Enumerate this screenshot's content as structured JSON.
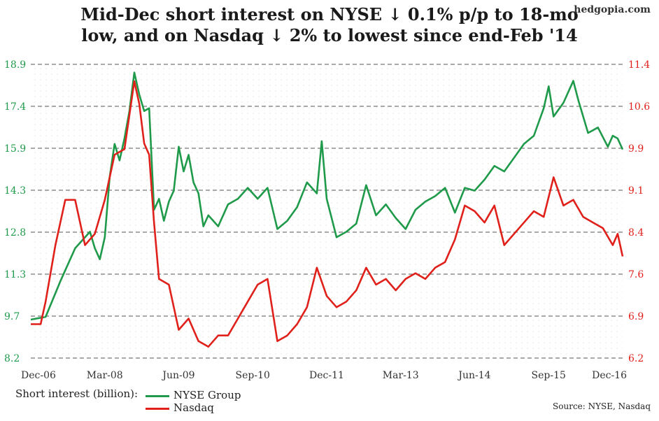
{
  "header": {
    "title_line1": "Mid-Dec short interest on NYSE ↓ 0.1% p/p to 18-mo",
    "title_line2": "low, and on Nasdaq ↓ 2% to lowest since end-Feb '14",
    "brand": "hedgopia.com"
  },
  "legend": {
    "label": "Short interest (billion):",
    "nyse": "NYSE Group",
    "nasdaq": "Nasdaq"
  },
  "source": "Source: NYSE, Nasdaq",
  "colors": {
    "nyse": "#1f9a4a",
    "nasdaq": "#e0201a",
    "grid": "#555555"
  },
  "chart_data": {
    "type": "line",
    "x_ticks": [
      "Dec-06",
      "Mar-08",
      "Jun-09",
      "Sep-10",
      "Dec-11",
      "Mar-13",
      "Jun-14",
      "Sep-15",
      "Dec-16"
    ],
    "x_range": [
      "Dec-06",
      "Dec-16"
    ],
    "left_axis": {
      "series": "NYSE Group",
      "range": [
        8.2,
        18.9
      ],
      "ticks": [
        "8.2",
        "9.7",
        "11.3",
        "12.8",
        "14.3",
        "15.9",
        "17.4",
        "18.9"
      ]
    },
    "right_axis": {
      "series": "Nasdaq",
      "range": [
        6.2,
        11.4
      ],
      "ticks": [
        "6.2",
        "6.9",
        "7.6",
        "8.4",
        "9.1",
        "9.9",
        "10.6",
        "11.4"
      ]
    },
    "grid": "horizontal dashed",
    "legend_position": "bottom-left",
    "series": [
      {
        "name": "NYSE Group",
        "axis": "left",
        "points": [
          [
            "2006-12",
            9.6
          ],
          [
            "2007-03",
            9.7
          ],
          [
            "2007-06",
            11.0
          ],
          [
            "2007-09",
            12.2
          ],
          [
            "2007-12",
            12.8
          ],
          [
            "2008-01",
            12.2
          ],
          [
            "2008-02",
            11.8
          ],
          [
            "2008-03",
            12.6
          ],
          [
            "2008-04",
            14.8
          ],
          [
            "2008-05",
            16.0
          ],
          [
            "2008-06",
            15.4
          ],
          [
            "2008-07",
            16.2
          ],
          [
            "2008-08",
            17.2
          ],
          [
            "2008-09",
            18.6
          ],
          [
            "2008-10",
            17.8
          ],
          [
            "2008-11",
            17.2
          ],
          [
            "2008-12",
            17.3
          ],
          [
            "2009-01",
            13.6
          ],
          [
            "2009-02",
            14.0
          ],
          [
            "2009-03",
            13.2
          ],
          [
            "2009-04",
            13.9
          ],
          [
            "2009-05",
            14.3
          ],
          [
            "2009-06",
            15.9
          ],
          [
            "2009-07",
            15.0
          ],
          [
            "2009-08",
            15.6
          ],
          [
            "2009-09",
            14.6
          ],
          [
            "2009-10",
            14.2
          ],
          [
            "2009-11",
            13.0
          ],
          [
            "2009-12",
            13.4
          ],
          [
            "2010-02",
            13.0
          ],
          [
            "2010-04",
            13.8
          ],
          [
            "2010-06",
            14.0
          ],
          [
            "2010-08",
            14.4
          ],
          [
            "2010-10",
            14.0
          ],
          [
            "2010-12",
            14.4
          ],
          [
            "2011-02",
            12.9
          ],
          [
            "2011-04",
            13.2
          ],
          [
            "2011-06",
            13.7
          ],
          [
            "2011-08",
            14.6
          ],
          [
            "2011-10",
            14.2
          ],
          [
            "2011-11",
            16.1
          ],
          [
            "2011-12",
            14.0
          ],
          [
            "2012-02",
            12.6
          ],
          [
            "2012-04",
            12.8
          ],
          [
            "2012-06",
            13.1
          ],
          [
            "2012-08",
            14.5
          ],
          [
            "2012-10",
            13.4
          ],
          [
            "2012-12",
            13.8
          ],
          [
            "2013-02",
            13.3
          ],
          [
            "2013-04",
            12.9
          ],
          [
            "2013-06",
            13.6
          ],
          [
            "2013-08",
            13.9
          ],
          [
            "2013-10",
            14.1
          ],
          [
            "2013-12",
            14.4
          ],
          [
            "2014-02",
            13.5
          ],
          [
            "2014-04",
            14.4
          ],
          [
            "2014-06",
            14.3
          ],
          [
            "2014-08",
            14.7
          ],
          [
            "2014-10",
            15.2
          ],
          [
            "2014-12",
            15.0
          ],
          [
            "2015-02",
            15.5
          ],
          [
            "2015-04",
            16.0
          ],
          [
            "2015-06",
            16.3
          ],
          [
            "2015-08",
            17.3
          ],
          [
            "2015-09",
            18.1
          ],
          [
            "2015-10",
            17.0
          ],
          [
            "2015-12",
            17.5
          ],
          [
            "2016-02",
            18.3
          ],
          [
            "2016-03",
            17.6
          ],
          [
            "2016-05",
            16.4
          ],
          [
            "2016-07",
            16.6
          ],
          [
            "2016-09",
            15.9
          ],
          [
            "2016-10",
            16.3
          ],
          [
            "2016-11",
            16.2
          ],
          [
            "2016-12",
            15.8
          ]
        ]
      },
      {
        "name": "Nasdaq",
        "axis": "right",
        "points": [
          [
            "2006-12",
            6.8
          ],
          [
            "2007-02",
            6.8
          ],
          [
            "2007-03",
            7.2
          ],
          [
            "2007-05",
            8.2
          ],
          [
            "2007-07",
            9.0
          ],
          [
            "2007-09",
            9.0
          ],
          [
            "2007-11",
            8.2
          ],
          [
            "2008-01",
            8.4
          ],
          [
            "2008-03",
            9.0
          ],
          [
            "2008-05",
            9.8
          ],
          [
            "2008-07",
            9.9
          ],
          [
            "2008-09",
            11.1
          ],
          [
            "2008-10",
            10.7
          ],
          [
            "2008-11",
            10.0
          ],
          [
            "2008-12",
            9.8
          ],
          [
            "2009-01",
            8.6
          ],
          [
            "2009-02",
            7.6
          ],
          [
            "2009-04",
            7.5
          ],
          [
            "2009-06",
            6.7
          ],
          [
            "2009-08",
            6.9
          ],
          [
            "2009-10",
            6.5
          ],
          [
            "2009-12",
            6.4
          ],
          [
            "2010-02",
            6.6
          ],
          [
            "2010-04",
            6.6
          ],
          [
            "2010-06",
            6.9
          ],
          [
            "2010-08",
            7.2
          ],
          [
            "2010-10",
            7.5
          ],
          [
            "2010-12",
            7.6
          ],
          [
            "2011-02",
            6.5
          ],
          [
            "2011-04",
            6.6
          ],
          [
            "2011-06",
            6.8
          ],
          [
            "2011-08",
            7.1
          ],
          [
            "2011-10",
            7.8
          ],
          [
            "2011-12",
            7.3
          ],
          [
            "2012-02",
            7.1
          ],
          [
            "2012-04",
            7.2
          ],
          [
            "2012-06",
            7.4
          ],
          [
            "2012-08",
            7.8
          ],
          [
            "2012-10",
            7.5
          ],
          [
            "2012-12",
            7.6
          ],
          [
            "2013-02",
            7.4
          ],
          [
            "2013-04",
            7.6
          ],
          [
            "2013-06",
            7.7
          ],
          [
            "2013-08",
            7.6
          ],
          [
            "2013-10",
            7.8
          ],
          [
            "2013-12",
            7.9
          ],
          [
            "2014-02",
            8.3
          ],
          [
            "2014-04",
            8.9
          ],
          [
            "2014-06",
            8.8
          ],
          [
            "2014-08",
            8.6
          ],
          [
            "2014-10",
            8.9
          ],
          [
            "2014-12",
            8.2
          ],
          [
            "2015-02",
            8.4
          ],
          [
            "2015-04",
            8.6
          ],
          [
            "2015-06",
            8.8
          ],
          [
            "2015-08",
            8.7
          ],
          [
            "2015-10",
            9.4
          ],
          [
            "2015-12",
            8.9
          ],
          [
            "2016-02",
            9.0
          ],
          [
            "2016-04",
            8.7
          ],
          [
            "2016-06",
            8.6
          ],
          [
            "2016-08",
            8.5
          ],
          [
            "2016-10",
            8.2
          ],
          [
            "2016-11",
            8.4
          ],
          [
            "2016-12",
            8.0
          ]
        ]
      }
    ]
  }
}
